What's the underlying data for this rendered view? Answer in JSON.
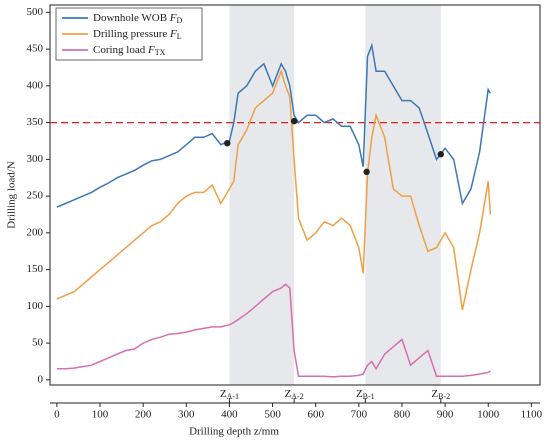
{
  "chart_data": {
    "type": "line",
    "xlabel": "Drilling depth z/mm",
    "ylabel": "Drilling load/N",
    "x": [
      0,
      20,
      40,
      60,
      80,
      100,
      120,
      140,
      160,
      180,
      200,
      220,
      240,
      260,
      280,
      300,
      320,
      340,
      360,
      380,
      400,
      410,
      420,
      440,
      460,
      480,
      500,
      520,
      530,
      540,
      550,
      560,
      580,
      600,
      620,
      640,
      660,
      680,
      700,
      710,
      720,
      730,
      740,
      760,
      780,
      800,
      820,
      840,
      860,
      880,
      900,
      920,
      940,
      960,
      980,
      1000,
      1005
    ],
    "series": [
      {
        "name": "Downhole WOB F_D",
        "color": "#3b78b5",
        "values": [
          235,
          240,
          245,
          250,
          255,
          262,
          268,
          275,
          280,
          285,
          292,
          298,
          300,
          305,
          310,
          320,
          330,
          330,
          335,
          320,
          325,
          350,
          390,
          400,
          420,
          430,
          400,
          430,
          420,
          400,
          360,
          350,
          360,
          360,
          350,
          355,
          345,
          345,
          320,
          290,
          440,
          455,
          420,
          420,
          400,
          380,
          380,
          370,
          335,
          300,
          315,
          300,
          240,
          260,
          310,
          395,
          390
        ]
      },
      {
        "name": "Drilling pressure F_L",
        "color": "#efa042",
        "values": [
          110,
          115,
          120,
          130,
          140,
          150,
          160,
          170,
          180,
          190,
          200,
          210,
          215,
          225,
          240,
          250,
          255,
          255,
          265,
          240,
          260,
          270,
          320,
          340,
          370,
          380,
          390,
          420,
          400,
          385,
          300,
          220,
          190,
          200,
          215,
          210,
          220,
          210,
          180,
          145,
          280,
          330,
          360,
          330,
          260,
          250,
          250,
          210,
          175,
          180,
          200,
          180,
          95,
          150,
          200,
          270,
          225
        ]
      },
      {
        "name": "Coring load F_TX",
        "color": "#d66fb0",
        "values": [
          15,
          15,
          16,
          18,
          20,
          25,
          30,
          35,
          40,
          42,
          50,
          55,
          58,
          62,
          63,
          65,
          68,
          70,
          72,
          72,
          75,
          78,
          82,
          90,
          100,
          110,
          120,
          125,
          130,
          125,
          40,
          5,
          5,
          5,
          5,
          4,
          5,
          5,
          6,
          8,
          20,
          25,
          15,
          35,
          45,
          55,
          20,
          30,
          40,
          5,
          5,
          5,
          5,
          6,
          8,
          10,
          12
        ]
      }
    ],
    "points": {
      "x": [
        395,
        550,
        718,
        890
      ],
      "y": [
        322,
        352,
        283,
        307
      ],
      "color": "#222222"
    },
    "reference_line": {
      "y": 350,
      "color": "#e02020"
    },
    "zones": [
      {
        "from": 400,
        "to": 550
      },
      {
        "from": 715,
        "to": 890
      }
    ],
    "zone_labels": [
      {
        "x": 400,
        "label": "Z_A-1"
      },
      {
        "x": 550,
        "label": "Z_A-2"
      },
      {
        "x": 715,
        "label": "Z_B-1"
      },
      {
        "x": 890,
        "label": "Z_B-2"
      }
    ],
    "xlim": [
      -16,
      1120
    ],
    "ylim": [
      -7,
      510
    ],
    "xticks": [
      0,
      100,
      200,
      300,
      400,
      500,
      600,
      700,
      800,
      900,
      1000,
      1100
    ],
    "yticks": [
      0,
      50,
      100,
      150,
      200,
      250,
      300,
      350,
      400,
      450,
      500
    ],
    "legend": "upper left"
  }
}
